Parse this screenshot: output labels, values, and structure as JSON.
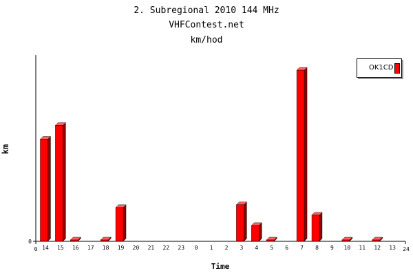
{
  "chart_data": {
    "type": "bar",
    "title_lines": [
      "2. Subregional 2010 144 MHz",
      "VHFContest.net",
      "km/hod"
    ],
    "xlabel": "Time",
    "ylabel": "km",
    "axis_start_label": "0",
    "axis_end_label": "24",
    "y_zero_label": "0",
    "categories": [
      "14",
      "15",
      "16",
      "17",
      "18",
      "19",
      "20",
      "21",
      "22",
      "23",
      "0",
      "1",
      "2",
      "3",
      "4",
      "5",
      "6",
      "7",
      "8",
      "9",
      "10",
      "11",
      "12",
      "13"
    ],
    "series": [
      {
        "name": "OK1CD",
        "color": "#ff0000",
        "values": [
          148,
          168,
          2,
          0,
          2,
          49,
          0,
          0,
          0,
          0,
          0,
          0,
          0,
          53,
          23,
          2,
          0,
          248,
          38,
          0,
          2,
          0,
          2,
          0
        ]
      }
    ],
    "ylim": [
      0,
      270
    ],
    "grid": false,
    "legend_position": "top-right"
  }
}
